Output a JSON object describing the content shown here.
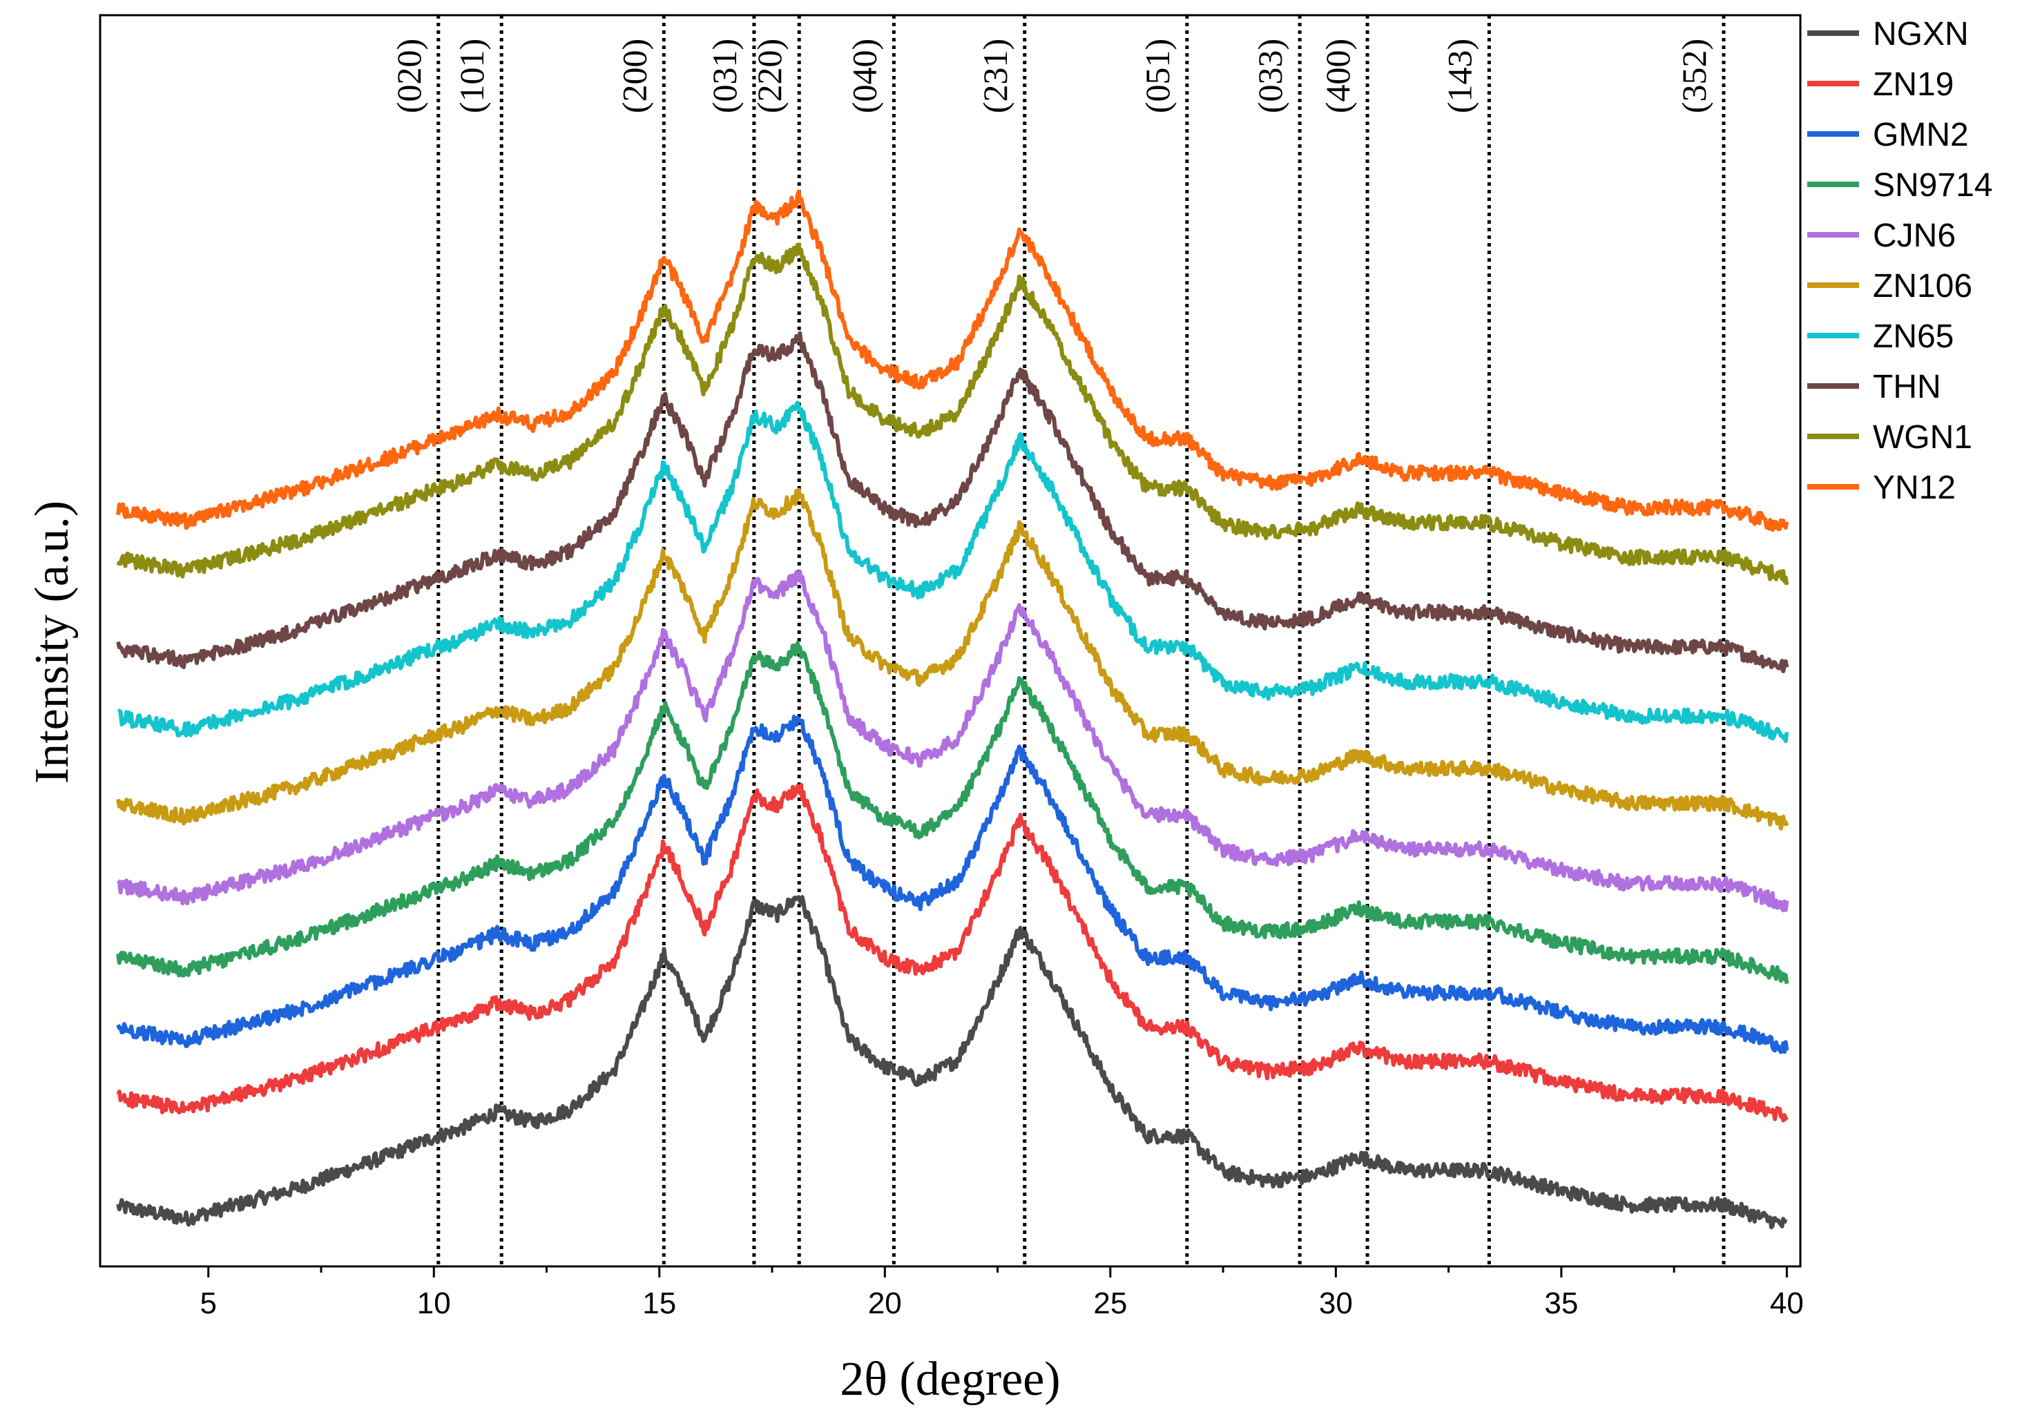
{
  "chart_data": {
    "type": "line",
    "title": "",
    "xlabel": "2θ (degree)",
    "ylabel": "Intensity (a.u.)",
    "xlim": [
      2.6,
      40.3
    ],
    "xticks": [
      5,
      10,
      15,
      20,
      25,
      30,
      35,
      40
    ],
    "xtick_labels": [
      "5",
      "10",
      "15",
      "20",
      "25",
      "30",
      "35",
      "40"
    ],
    "y_ticks_shown": false,
    "grid": false,
    "legend_position": "top-right, outside plot",
    "reference_lines": [
      {
        "label": "(020)",
        "x": 10.1
      },
      {
        "label": "(101)",
        "x": 11.5
      },
      {
        "label": "(200)",
        "x": 15.1
      },
      {
        "label": "(031)",
        "x": 17.1
      },
      {
        "label": "(220)",
        "x": 18.1
      },
      {
        "label": "(040)",
        "x": 20.2
      },
      {
        "label": "(231)",
        "x": 23.1
      },
      {
        "label": "(051)",
        "x": 26.7
      },
      {
        "label": "(033)",
        "x": 29.2
      },
      {
        "label": "(400)",
        "x": 30.7
      },
      {
        "label": "(143)",
        "x": 33.4
      },
      {
        "label": "(352)",
        "x": 38.6
      }
    ],
    "profile": {
      "x": [
        3,
        4.5,
        7,
        9,
        10,
        10.6,
        11.4,
        12.2,
        13,
        14,
        14.6,
        15.1,
        15.5,
        16.0,
        16.6,
        17.1,
        17.6,
        18.1,
        18.6,
        19.2,
        20.0,
        20.8,
        21.6,
        22.4,
        23.0,
        23.6,
        24.3,
        25.0,
        25.8,
        26.7,
        27.5,
        28.5,
        29.5,
        30.5,
        31.5,
        33.4,
        35,
        36.5,
        38.6,
        40
      ],
      "y_rel": [
        18,
        0,
        45,
        92,
        118,
        130,
        155,
        140,
        158,
        215,
        300,
        382,
        335,
        262,
        350,
        455,
        440,
        468,
        390,
        260,
        220,
        200,
        230,
        330,
        420,
        360,
        275,
        190,
        120,
        120,
        68,
        55,
        62,
        90,
        70,
        70,
        40,
        20,
        20,
        -10
      ]
    },
    "series": [
      {
        "name": "NGXN",
        "color": "#4a4a4a",
        "offset": 0
      },
      {
        "name": "ZN19",
        "color": "#ee3b3b",
        "offset": 158
      },
      {
        "name": "GMN2",
        "color": "#1e64dc",
        "offset": 258
      },
      {
        "name": "SN9714",
        "color": "#2e9e5c",
        "offset": 360
      },
      {
        "name": "CJN6",
        "color": "#b070e0",
        "offset": 465
      },
      {
        "name": "ZN106",
        "color": "#c99a12",
        "offset": 582
      },
      {
        "name": "ZN65",
        "color": "#14c4cc",
        "offset": 708
      },
      {
        "name": "THN",
        "color": "#6e4646",
        "offset": 808
      },
      {
        "name": "WGN1",
        "color": "#8c8c12",
        "offset": 938
      },
      {
        "name": "YN12",
        "color": "#ff6610",
        "offset": 1010
      }
    ]
  }
}
